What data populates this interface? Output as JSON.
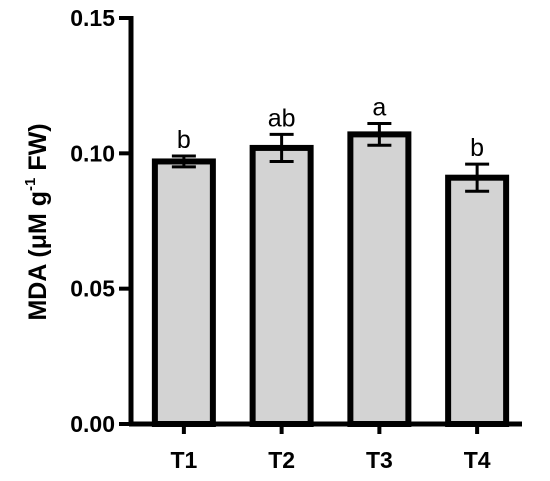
{
  "chart_data": {
    "type": "bar",
    "categories": [
      "T1",
      "T2",
      "T3",
      "T4"
    ],
    "values": [
      0.097,
      0.102,
      0.107,
      0.091
    ],
    "errors": [
      0.002,
      0.005,
      0.004,
      0.005
    ],
    "significance": [
      "b",
      "ab",
      "a",
      "b"
    ],
    "ylim": [
      0,
      0.15
    ],
    "yticks": [
      0.0,
      0.05,
      0.1,
      0.15
    ],
    "ytick_labels": [
      "0.00",
      "0.05",
      "0.10",
      "0.15"
    ],
    "ylabel": {
      "main": "MDA (μM g",
      "sup": "-1",
      "rest": " FW)"
    },
    "xlabel": "",
    "bar_color": "#d3d3d3",
    "edge_color": "#000000",
    "grid": false
  }
}
